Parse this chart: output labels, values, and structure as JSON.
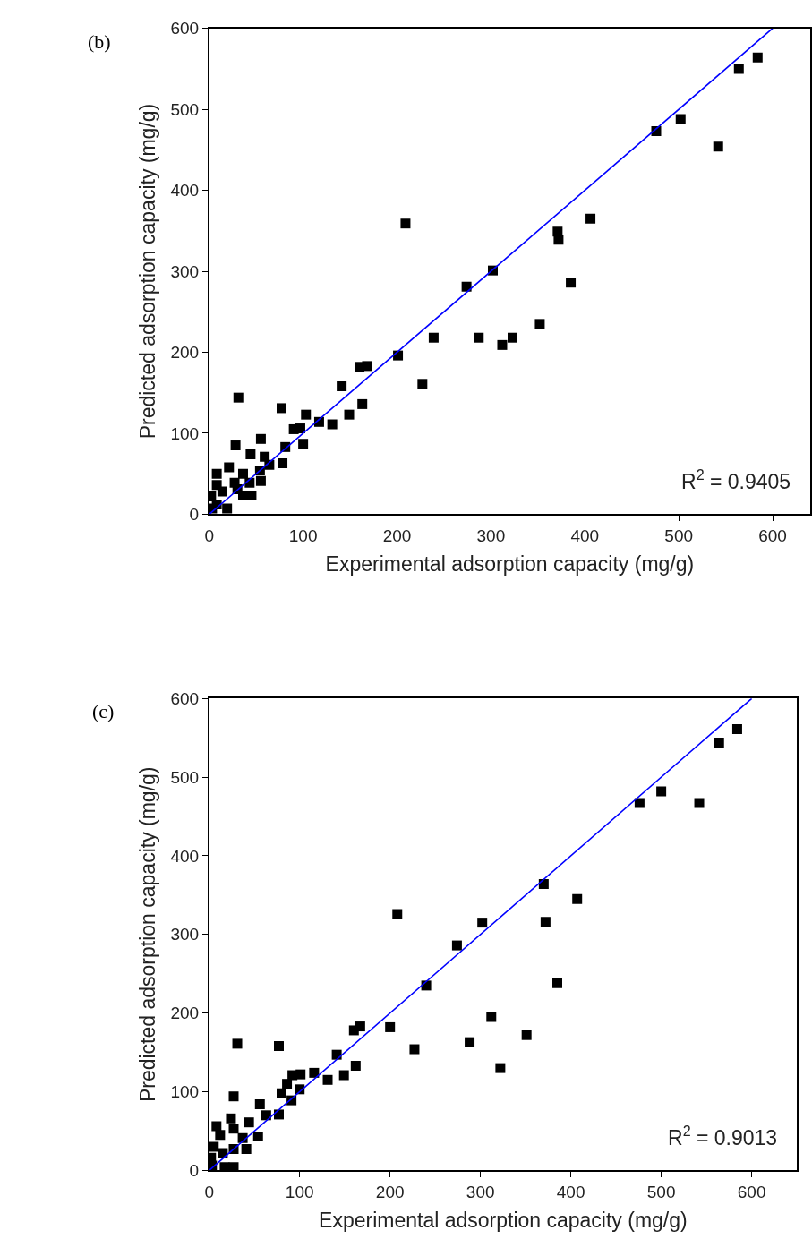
{
  "chart_data": [
    {
      "type": "scatter",
      "title": "(b)",
      "xlabel": "Experimental adsorption capacity (mg/g)",
      "ylabel": "Predicted adsorption capacity (mg/g)",
      "annotations": [
        "R$^{2}$ = 0.9405"
      ],
      "xlim": [
        0,
        640
      ],
      "ylim": [
        0,
        600
      ],
      "xticks": [
        0,
        100,
        200,
        300,
        400,
        500,
        600
      ],
      "yticks": [
        0,
        100,
        200,
        300,
        400,
        500,
        600
      ],
      "marker": "square",
      "series": [
        {
          "color": "#000000",
          "x": [
            584,
            564,
            476,
            502,
            542,
            406,
            371,
            372,
            385,
            352,
            302,
            274,
            287,
            312,
            323,
            239,
            209,
            227,
            201,
            160,
            168,
            163,
            149,
            141,
            131,
            117,
            103,
            31,
            77,
            55,
            28,
            44,
            90,
            97,
            100,
            81,
            59,
            64,
            78,
            54,
            55,
            45,
            36,
            21,
            8,
            36,
            27,
            8,
            14,
            2,
            8,
            19,
            3,
            43,
            30
          ],
          "values": [
            564,
            550,
            473,
            488,
            454,
            365,
            349,
            339,
            286,
            235,
            301,
            281,
            218,
            209,
            218,
            218,
            359,
            161,
            196,
            182,
            183,
            136,
            123,
            158,
            111,
            114,
            123,
            144,
            131,
            93,
            85,
            74,
            105,
            106,
            87,
            83,
            71,
            61,
            63,
            54,
            41,
            23,
            23,
            58,
            50,
            50,
            39,
            36,
            28,
            22,
            12,
            7,
            7,
            39,
            31
          ]
        },
        {
          "type": "line",
          "color": "#0000ff",
          "marker": "none",
          "x": [
            0,
            600
          ],
          "values": [
            0,
            600
          ]
        }
      ]
    },
    {
      "type": "scatter",
      "title": "(c)",
      "xlabel": "Experimental adsorption capacity (mg/g)",
      "ylabel": "Predicted adsorption capacity (mg/g)",
      "annotations": [
        "R$^{2}$ = 0.9013"
      ],
      "xlim": [
        0,
        650
      ],
      "ylim": [
        0,
        600
      ],
      "xticks": [
        0,
        100,
        200,
        300,
        400,
        500,
        600
      ],
      "yticks": [
        0,
        100,
        200,
        300,
        400,
        500,
        600
      ],
      "marker": "square",
      "series": [
        {
          "color": "#000000",
          "x": [
            584,
            564,
            476,
            500,
            542,
            370,
            372,
            407,
            385,
            351,
            312,
            288,
            227,
            302,
            274,
            240,
            208,
            200,
            322,
            31,
            77,
            141,
            160,
            167,
            162,
            149,
            131,
            116,
            101,
            92,
            86,
            100,
            80,
            91,
            77,
            63,
            56,
            27,
            54,
            44,
            41,
            27,
            24,
            8,
            27,
            12,
            37,
            5,
            15,
            2,
            27,
            17,
            3
          ],
          "values": [
            561,
            544,
            467,
            482,
            467,
            364,
            316,
            345,
            238,
            172,
            195,
            163,
            154,
            315,
            286,
            235,
            326,
            182,
            130,
            161,
            158,
            147,
            178,
            183,
            133,
            121,
            115,
            124,
            122,
            121,
            110,
            103,
            98,
            89,
            71,
            70,
            84,
            94,
            43,
            61,
            27,
            27,
            66,
            56,
            53,
            45,
            41,
            30,
            22,
            16,
            4,
            4,
            6
          ]
        },
        {
          "type": "line",
          "color": "#0000ff",
          "marker": "none",
          "x": [
            0,
            600
          ],
          "values": [
            0,
            600
          ]
        }
      ]
    }
  ]
}
